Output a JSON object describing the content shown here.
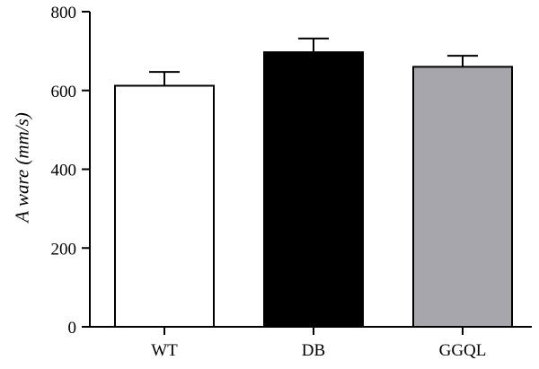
{
  "chart_data": {
    "type": "bar",
    "title": "",
    "xlabel": "",
    "ylabel": "A ware (mm/s)",
    "ylim": [
      0,
      800
    ],
    "yticks": [
      0,
      200,
      400,
      600,
      800
    ],
    "categories": [
      "WT",
      "DB",
      "GGQL"
    ],
    "values": [
      612,
      697,
      660
    ],
    "errors": [
      35,
      35,
      28
    ],
    "colors": [
      "#ffffff",
      "#000000",
      "#a7a6ab"
    ],
    "edge_color": "#000000",
    "grid": false,
    "legend": "none"
  }
}
